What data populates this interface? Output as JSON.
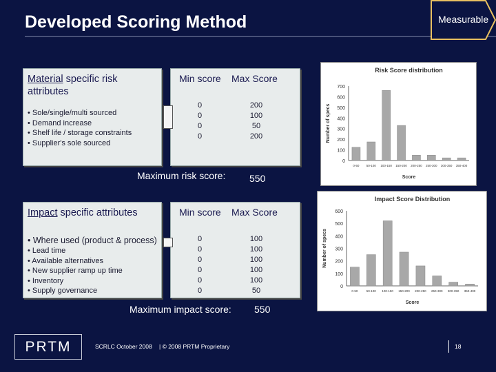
{
  "slide": {
    "title": "Developed Scoring Method",
    "measurable_label": "Measurable"
  },
  "material": {
    "title_underlined": "Material",
    "title_rest": " specific risk attributes",
    "bullets": [
      "• Sole/single/multi sourced",
      "• Demand increase",
      "• Shelf life / storage constraints",
      "• Supplier's sole sourced"
    ],
    "min_header": "Min score",
    "max_header": "Max Score",
    "min_values": [
      "0",
      "0",
      "0",
      "0"
    ],
    "max_values": [
      "200",
      "100",
      "50",
      "200"
    ],
    "total_label": "Maximum risk score:",
    "total_value": "550"
  },
  "impact": {
    "title_underlined": "Impact",
    "title_rest": " specific attributes",
    "first_bullet": "• Where used (product & process)",
    "bullets": [
      "• Lead time",
      "• Available alternatives",
      "• New supplier ramp up time",
      "• Inventory",
      "• Supply governance"
    ],
    "min_header": "Min score",
    "max_header": "Max Score",
    "min_values": [
      "0",
      "0",
      "0",
      "0",
      "0",
      "0"
    ],
    "max_values": [
      "100",
      "100",
      "100",
      "100",
      "100",
      "50"
    ],
    "total_label": "Maximum impact score:",
    "total_value": "550"
  },
  "chart_data": [
    {
      "type": "bar",
      "title": "Risk Score distribution",
      "xlabel": "Score",
      "ylabel": "Number of specs",
      "categories": [
        "0-50",
        "50-100",
        "100-150",
        "150-200",
        "200-250",
        "250-300",
        "300-350",
        "350-400"
      ],
      "values": [
        125,
        175,
        660,
        330,
        50,
        50,
        25,
        25
      ],
      "ylim": [
        0,
        700
      ],
      "yticks": [
        0,
        100,
        200,
        300,
        400,
        500,
        600,
        700
      ],
      "grid": false,
      "color": "#a8a8a8"
    },
    {
      "type": "bar",
      "title": "Impact Score Distribution",
      "xlabel": "Score",
      "ylabel": "Number of specs",
      "categories": [
        "0-50",
        "50-100",
        "100-150",
        "150-200",
        "200-250",
        "250-300",
        "300-350",
        "350-400"
      ],
      "values": [
        150,
        250,
        520,
        270,
        160,
        80,
        30,
        15
      ],
      "ylim": [
        0,
        600
      ],
      "yticks": [
        0,
        100,
        200,
        300,
        400,
        500,
        600
      ],
      "grid": false,
      "color": "#a8a8a8"
    }
  ],
  "footer": {
    "logo": "PRTM",
    "date": "SCRLC October 2008",
    "copyright": "| © 2008 PRTM Proprietary",
    "page": "18"
  }
}
